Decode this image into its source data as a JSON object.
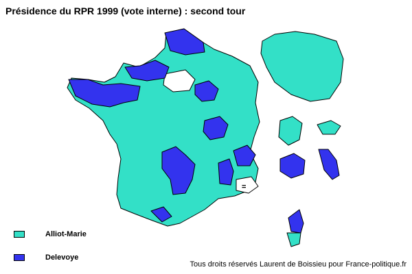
{
  "title": "Présidence du RPR 1999 (vote interne) : second tour",
  "legend": [
    {
      "label": "Alliot-Marie",
      "color": "#33e0c7"
    },
    {
      "label": "Delevoye",
      "color": "#3333ee"
    }
  ],
  "map": {
    "unshaded_marker": "=",
    "colors": {
      "alliot_marie": "#33e0c7",
      "delevoye": "#3333ee",
      "no_data": "#ffffff"
    },
    "regions": [
      {
        "name": "Nord-Pas-de-Calais",
        "winner": "Delevoye"
      },
      {
        "name": "Finistère",
        "winner": "Delevoye"
      },
      {
        "name": "Côtes-d'Armor",
        "winner": "Delevoye"
      },
      {
        "name": "Ille-et-Vilaine",
        "winner": "Delevoye"
      },
      {
        "name": "Manche",
        "winner": "Delevoye"
      },
      {
        "name": "Calvados",
        "winner": "Delevoye"
      },
      {
        "name": "Marne",
        "winner": "Delevoye"
      },
      {
        "name": "Nièvre",
        "winner": "Delevoye"
      },
      {
        "name": "Haute-Vienne",
        "winner": "Delevoye"
      },
      {
        "name": "Corrèze",
        "winner": "Delevoye"
      },
      {
        "name": "Cantal",
        "winner": "Delevoye"
      },
      {
        "name": "Lot",
        "winner": "Delevoye"
      },
      {
        "name": "Aveyron",
        "winner": "Delevoye"
      },
      {
        "name": "Isère",
        "winner": "Delevoye"
      },
      {
        "name": "Drôme",
        "winner": "Delevoye"
      },
      {
        "name": "Pyrénées-Atlantiques",
        "winner": "Delevoye"
      },
      {
        "name": "Haute-Corse",
        "winner": "Delevoye"
      },
      {
        "name": "Réunion",
        "winner": "Delevoye"
      },
      {
        "name": "Guyane",
        "winner": "Delevoye"
      }
    ]
  },
  "credit": "Tous droits réservés Laurent de Boissieu pour France-politique.fr"
}
